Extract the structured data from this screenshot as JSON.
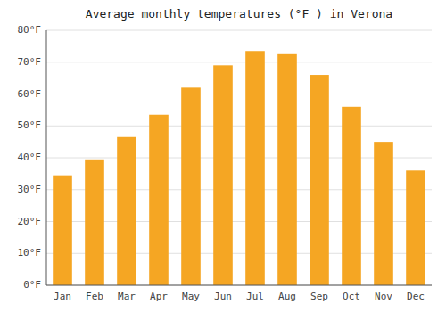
{
  "chart_data": {
    "type": "bar",
    "title": "Average monthly temperatures (°F ) in Verona",
    "categories": [
      "Jan",
      "Feb",
      "Mar",
      "Apr",
      "May",
      "Jun",
      "Jul",
      "Aug",
      "Sep",
      "Oct",
      "Nov",
      "Dec"
    ],
    "values": [
      34.5,
      39.5,
      46.5,
      53.5,
      62.0,
      69.0,
      73.5,
      72.5,
      66.0,
      56.0,
      45.0,
      36.0
    ],
    "color": "#F5A623",
    "ylim": [
      0,
      80
    ],
    "yticks": [
      {
        "value": 0,
        "label": "0°F"
      },
      {
        "value": 10,
        "label": "10°F"
      },
      {
        "value": 20,
        "label": "20°F"
      },
      {
        "value": 30,
        "label": "30°F"
      },
      {
        "value": 40,
        "label": "40°F"
      },
      {
        "value": 50,
        "label": "50°F"
      },
      {
        "value": 60,
        "label": "60°F"
      },
      {
        "value": 70,
        "label": "70°F"
      },
      {
        "value": 80,
        "label": "80°F"
      }
    ],
    "grid": true
  }
}
